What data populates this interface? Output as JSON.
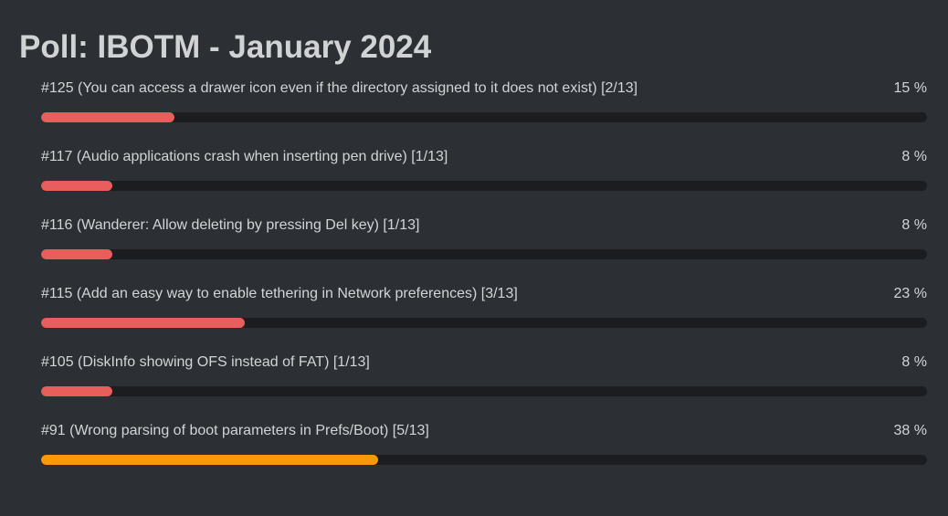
{
  "poll": {
    "title": "Poll: IBOTM - January 2024",
    "options": [
      {
        "label": "#125 (You can access a drawer icon even if the directory assigned to it does not exist) [2/13]",
        "percent_text": "15 %",
        "fraction": 0.15,
        "leader": false
      },
      {
        "label": "#117 (Audio applications crash when inserting pen drive) [1/13]",
        "percent_text": "8 %",
        "fraction": 0.08,
        "leader": false
      },
      {
        "label": "#116 (Wanderer: Allow deleting by pressing Del key) [1/13]",
        "percent_text": "8 %",
        "fraction": 0.08,
        "leader": false
      },
      {
        "label": "#115 (Add an easy way to enable tethering in Network preferences) [3/13]",
        "percent_text": "23 %",
        "fraction": 0.23,
        "leader": false
      },
      {
        "label": "#105 (DiskInfo showing OFS instead of FAT) [1/13]",
        "percent_text": "8 %",
        "fraction": 0.08,
        "leader": false
      },
      {
        "label": "#91 (Wrong parsing of boot parameters in Prefs/Boot) [5/13]",
        "percent_text": "38 %",
        "fraction": 0.38,
        "leader": true
      }
    ]
  },
  "colors": {
    "background": "#2c3034",
    "bar_track": "#1b1d20",
    "bar_fill": "#e85e5c",
    "bar_fill_leader": "#f89a0a"
  }
}
